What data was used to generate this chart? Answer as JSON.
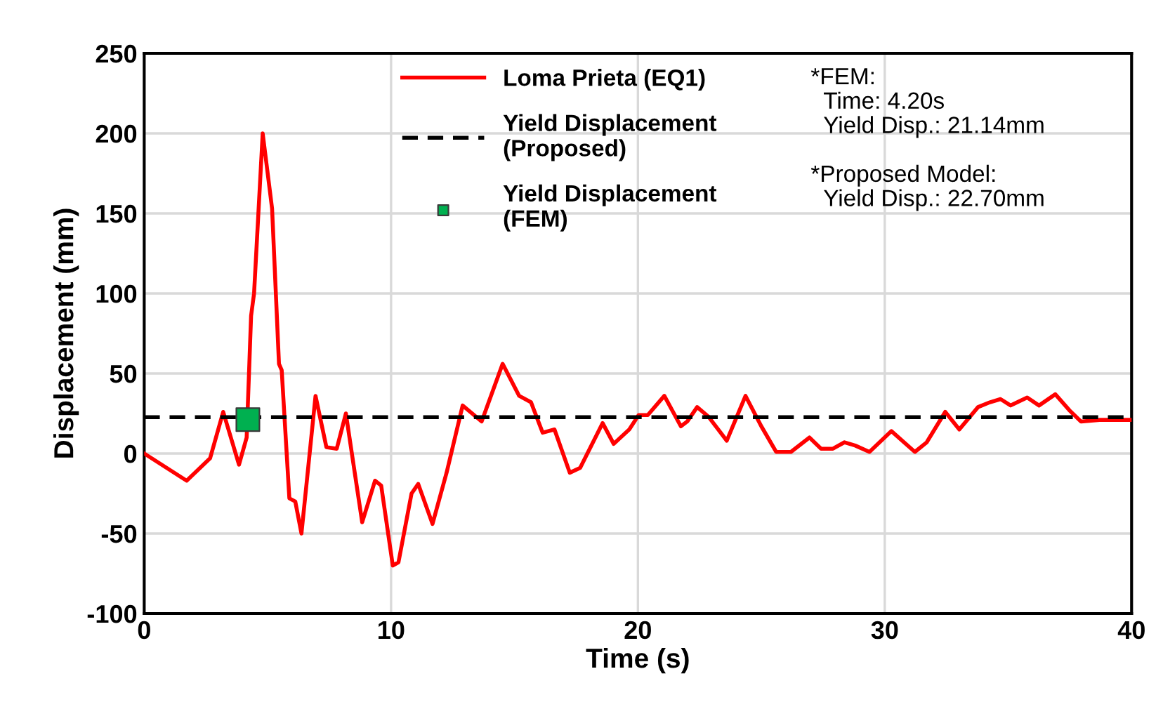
{
  "chart_data": {
    "type": "line",
    "xlabel": "Time (s)",
    "ylabel": "Displacement (mm)",
    "xlim": [
      0,
      40
    ],
    "xticks": [
      0,
      10,
      20,
      30,
      40
    ],
    "ylim": [
      -100,
      250
    ],
    "yticks": [
      -100,
      -50,
      0,
      50,
      100,
      150,
      200,
      250
    ],
    "grid": true,
    "legend": "top",
    "line_style": "solid",
    "marker": "none",
    "series": [
      {
        "name": "Loma Prieta (EQ1)",
        "color": "#ff0000",
        "x": [
          0,
          1.72,
          2.67,
          3.2,
          3.84,
          4.15,
          4.33,
          4.45,
          4.8,
          5.18,
          5.46,
          5.57,
          5.88,
          6.12,
          6.37,
          6.94,
          7.38,
          7.8,
          8.17,
          8.83,
          9.35,
          9.6,
          10.07,
          10.3,
          10.83,
          11.1,
          11.68,
          12.25,
          12.9,
          13.67,
          14.52,
          15.19,
          15.67,
          16.14,
          16.62,
          17.24,
          17.66,
          18.57,
          19.02,
          19.65,
          20.03,
          20.4,
          21.07,
          21.74,
          22.0,
          22.4,
          22.86,
          23.6,
          24.36,
          25.0,
          25.6,
          26.2,
          26.95,
          27.42,
          27.9,
          28.37,
          28.8,
          29.38,
          30.27,
          31.22,
          31.7,
          32.45,
          33.02,
          33.78,
          34.26,
          34.69,
          35.1,
          35.77,
          36.25,
          36.91,
          37.48,
          37.95,
          38.7,
          39.96
        ],
        "values": [
          0,
          -17,
          -3,
          26,
          -7,
          10,
          86,
          100,
          200,
          153,
          56,
          52,
          -28,
          -30,
          -50,
          36,
          4,
          3,
          25,
          -43,
          -17,
          -20,
          -70,
          -68,
          -25,
          -19,
          -44,
          -12,
          30,
          20,
          56,
          36,
          32,
          13,
          15,
          -12,
          -9,
          19,
          6,
          15,
          24,
          24,
          36,
          17,
          20,
          29,
          23,
          8,
          36,
          17,
          1,
          1,
          10,
          3,
          3,
          7,
          5,
          1,
          14,
          1,
          7,
          26,
          15,
          29,
          32,
          34,
          30,
          35,
          30,
          37,
          27,
          20,
          21,
          21
        ]
      },
      {
        "name": "Yield Displacement\n(FEM)",
        "type": "scatter",
        "marker": "square",
        "color": "#00b050",
        "x": [
          4.2
        ],
        "values": [
          21.14
        ]
      }
    ],
    "ref_lines": [
      {
        "axis": "y",
        "value": 22.7,
        "label": "Yield Displacement\n(Proposed)",
        "color": "#000000",
        "line_style": "dashed"
      }
    ],
    "annotations": [
      "*FEM:",
      "  Time: 4.20s",
      "  Yield Disp.: 21.14mm",
      "*Proposed Model:",
      "  Yield Disp.: 22.70mm"
    ]
  }
}
